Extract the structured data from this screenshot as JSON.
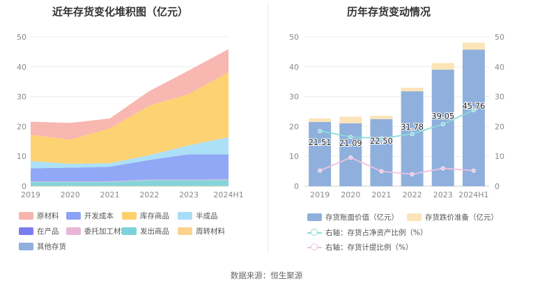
{
  "source_text": "数据来源：恒生聚源",
  "chart_data": [
    {
      "type": "area",
      "stacked": true,
      "title": "近年存货变化堆积图（亿元）",
      "categories": [
        "2019",
        "2020",
        "2021",
        "2022",
        "2023",
        "2024H1"
      ],
      "y_ticks": [
        "0",
        "10",
        "20",
        "30",
        "40",
        "50"
      ],
      "ylim": [
        0,
        50
      ],
      "grid": true,
      "series": [
        {
          "name": "其他存货",
          "color": "#8fb0dc",
          "values": [
            0,
            0,
            0,
            0,
            0,
            0
          ]
        },
        {
          "name": "周转材料",
          "color": "#fdd28c",
          "values": [
            0.1,
            0.1,
            0.1,
            0.1,
            0.1,
            0.1
          ]
        },
        {
          "name": "发出商品",
          "color": "#7dd3d8",
          "values": [
            1.3,
            1.3,
            1.3,
            1.9,
            1.9,
            2.0
          ]
        },
        {
          "name": "委托加工材料",
          "color": "#e8b7d8",
          "values": [
            0.2,
            0.2,
            0.2,
            0.2,
            0.2,
            0.2
          ]
        },
        {
          "name": "在产品",
          "color": "#7c7cf0",
          "values": [
            0,
            0,
            0,
            0,
            0,
            0
          ]
        },
        {
          "name": "开发成本",
          "color": "#8ba3f5",
          "values": [
            4.4,
            4.6,
            4.9,
            6.6,
            8.5,
            8.4
          ]
        },
        {
          "name": "半成品",
          "color": "#a8def7",
          "values": [
            2.4,
            1.3,
            1.2,
            1.6,
            3.0,
            5.7
          ]
        },
        {
          "name": "库存商品",
          "color": "#fdd06c",
          "values": [
            8.8,
            8.1,
            11.7,
            16.6,
            17.2,
            21.8
          ]
        },
        {
          "name": "原材料",
          "color": "#f8b3ad",
          "values": [
            4.4,
            5.6,
            3.3,
            4.9,
            7.9,
            7.7
          ]
        }
      ],
      "legend": [
        "原材料",
        "开发成本",
        "库存商品",
        "半成品",
        "在产品",
        "委托加工材料",
        "发出商品",
        "周转材料",
        "其他存货"
      ]
    },
    {
      "type": "bar+line",
      "title": "历年存货变动情况",
      "categories": [
        "2019",
        "2020",
        "2021",
        "2022",
        "2023",
        "2024H1"
      ],
      "y_ticks": [
        "0",
        "10",
        "20",
        "30",
        "40",
        "50"
      ],
      "y2_ticks": [
        "0",
        "10",
        "20",
        "30",
        "40",
        "50"
      ],
      "ylim": [
        0,
        50
      ],
      "y2lim": [
        0,
        50
      ],
      "grid": true,
      "series": [
        {
          "name": "存货账面价值（亿元）",
          "kind": "bar",
          "color": "#8fb0dc",
          "values": [
            21.51,
            21.09,
            22.5,
            31.78,
            39.05,
            45.76
          ],
          "labels": [
            "21.51",
            "21.09",
            "22.50",
            "31.78",
            "39.05",
            "45.76"
          ]
        },
        {
          "name": "存货跌价准备（亿元）",
          "kind": "bar",
          "stacked_on": 0,
          "color": "#fce4b8",
          "values": [
            1.2,
            2.2,
            1.1,
            1.2,
            2.2,
            2.3
          ]
        },
        {
          "name": "右轴：存货占净资产比例（%）",
          "kind": "line",
          "axis": "right",
          "color": "#8adbd9",
          "values": [
            18.5,
            16.5,
            16.0,
            17.5,
            20.8,
            25.5
          ]
        },
        {
          "name": "右轴：存货计提比例（%）",
          "kind": "line",
          "axis": "right",
          "color": "#f0bfe0",
          "values": [
            5.2,
            9.6,
            5.0,
            4.0,
            6.0,
            5.2
          ]
        }
      ],
      "legend": [
        "存货账面价值（亿元）",
        "存货跌价准备（亿元）",
        "右轴：存货占净资产比例（%）",
        "右轴：存货计提比例（%）"
      ]
    }
  ]
}
